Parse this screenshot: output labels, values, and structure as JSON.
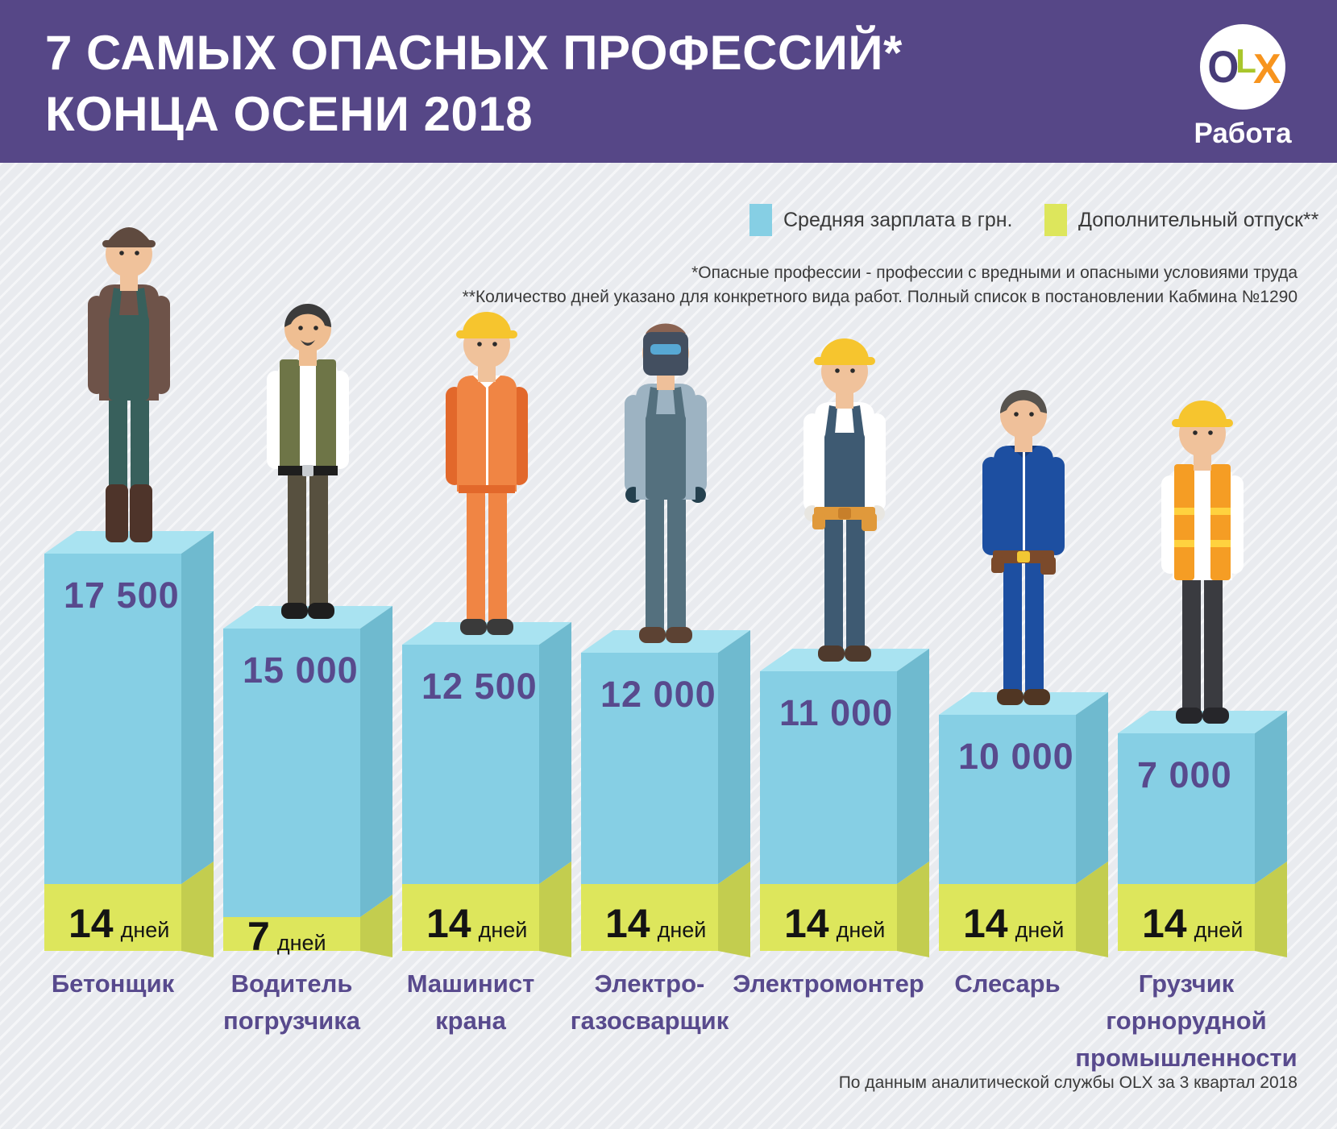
{
  "header": {
    "title_line1": "7 САМЫХ ОПАСНЫХ ПРОФЕССИЙ*",
    "title_line2": "КОНЦА ОСЕНИ 2018",
    "bg_color": "#564787",
    "logo": {
      "o": "O",
      "l": "L",
      "x": "X",
      "caption": "Работа",
      "o_color": "#473C78",
      "l_color": "#A9C62C",
      "x_color": "#F7941E"
    }
  },
  "legend": {
    "items": [
      {
        "label": "Средняя зарплата в грн.",
        "color": "#86CFE4"
      },
      {
        "label": "Дополнительный отпуск**",
        "color": "#DDE65C"
      }
    ]
  },
  "footnotes": {
    "line1": "*Опасные профессии - профессии с вредными и опасными условиями труда",
    "line2": "**Количество дней указано для конкретного вида работ. Полный список в постановлении Кабмина №1290"
  },
  "source": "По данным аналитической службы OLX за 3 квартал 2018",
  "chart_data": {
    "type": "bar",
    "title": "7 САМЫХ ОПАСНЫХ ПРОФЕССИЙ* КОНЦА ОСЕНИ 2018",
    "categories": [
      "Бетонщик",
      "Водитель погрузчика",
      "Машинист крана",
      "Электро-газосварщик",
      "Электромонтер",
      "Слесарь",
      "Грузчик горнорудной промышленности"
    ],
    "series": [
      {
        "name": "Средняя зарплата в грн.",
        "values": [
          17500,
          15000,
          12500,
          12000,
          11000,
          10000,
          7000
        ]
      },
      {
        "name": "Дополнительный отпуск, дней",
        "values": [
          14,
          7,
          14,
          14,
          14,
          14,
          14
        ]
      }
    ],
    "legend_position": "top-right",
    "grid": false,
    "source": "По данным аналитической службы OLX за 3 квартал 2018"
  },
  "colors": {
    "bar_front": "#86CFE4",
    "bar_top": "#A9E3F1",
    "bar_side": "#6FBACF",
    "green_front": "#DDE65C",
    "green_side": "#C3CD4F",
    "value_text": "#584A8D",
    "label_text": "#584A8D",
    "days_text": "#141414"
  },
  "bars": [
    {
      "salary_label": "17 500",
      "days": "14",
      "days_unit": "дней",
      "name_lines": [
        "Бетонщик"
      ],
      "worker": {
        "headgear": "cap",
        "hg": "#5F4A3F",
        "skin": "#F0C29B",
        "shirt": "#6E5349",
        "style": "bib",
        "overall": "#38605C",
        "pants": "#38605C",
        "shoe": "#4E342A",
        "boots": true
      }
    },
    {
      "salary_label": "15 000",
      "days": "7",
      "days_unit": "дней",
      "name_lines": [
        "Водитель",
        "погрузчика"
      ],
      "worker": {
        "headgear": "hair",
        "hg": "#3B3B3B",
        "skin": "#EFBE92",
        "shirt": "#FFFFFF",
        "beard": "#3B3B3B",
        "style": "vest",
        "vest": "#6E7547",
        "belt": "#1E1E1E",
        "pants": "#57503F",
        "shoe": "#1E1E1E"
      }
    },
    {
      "salary_label": "12 500",
      "days": "14",
      "days_unit": "дней",
      "name_lines": [
        "Машинист",
        "крана"
      ],
      "worker": {
        "headgear": "helmet",
        "hg": "#F6C52E",
        "skin": "#F0C29B",
        "shirt": "#F08544",
        "style": "jumpsuit",
        "sleeve": "#E2682B",
        "collar": "#FFFFFF",
        "zip": "#FFFFFF",
        "beltline": "#E2682B",
        "pants": "#F08544",
        "shoe": "#3A3A3A"
      }
    },
    {
      "salary_label": "12 000",
      "days": "14",
      "days_unit": "дней",
      "name_lines": [
        "Электро-",
        "газосварщик"
      ],
      "worker": {
        "headgear": "mask",
        "mask": "#434F60",
        "visor": "#57A8D4",
        "hg": "#8A6352",
        "skin": "#EFC09A",
        "shirt": "#9DB3C2",
        "style": "bib",
        "overall": "#54707E",
        "pants": "#54707E",
        "gloves": "#24404E",
        "shoe": "#5C4233"
      }
    },
    {
      "salary_label": "11 000",
      "days": "14",
      "days_unit": "дней",
      "name_lines": [
        "Электромонтер"
      ],
      "worker": {
        "headgear": "helmet",
        "hg": "#F6C52E",
        "skin": "#F0C29B",
        "shirt": "#FFFFFF",
        "style": "bib",
        "overall": "#3E5A72",
        "pants": "#3E5A72",
        "toolbelt": "#E0993B",
        "buckle": "#C77F2A",
        "gloves": "#E8E6E1",
        "shoe": "#4F3A2D"
      }
    },
    {
      "salary_label": "10 000",
      "days": "14",
      "days_unit": "дней",
      "name_lines": [
        "Слесарь"
      ],
      "worker": {
        "headgear": "hair",
        "hg": "#57534E",
        "skin": "#EFC09A",
        "shirt": "#1D4FA1",
        "style": "jumpsuit",
        "sleeve": "#1D4FA1",
        "collar": "#163C7D",
        "zip": "#FFFFFF",
        "toolbelt": "#7B4A2B",
        "buckle": "#F2C733",
        "pants": "#1D4FA1",
        "shoe": "#503623"
      }
    },
    {
      "salary_label": "7 000",
      "days": "14",
      "days_unit": "дней",
      "name_lines": [
        "Грузчик",
        "горнорудной",
        "промышленности"
      ],
      "worker": {
        "headgear": "helmet",
        "hg": "#F6C52E",
        "skin": "#F0C29B",
        "shirt": "#FFFFFF",
        "style": "vest",
        "vest": "#F59D24",
        "vest_stripe": "#FFD23F",
        "pants": "#3A3B40",
        "shoe": "#26262A"
      }
    }
  ]
}
